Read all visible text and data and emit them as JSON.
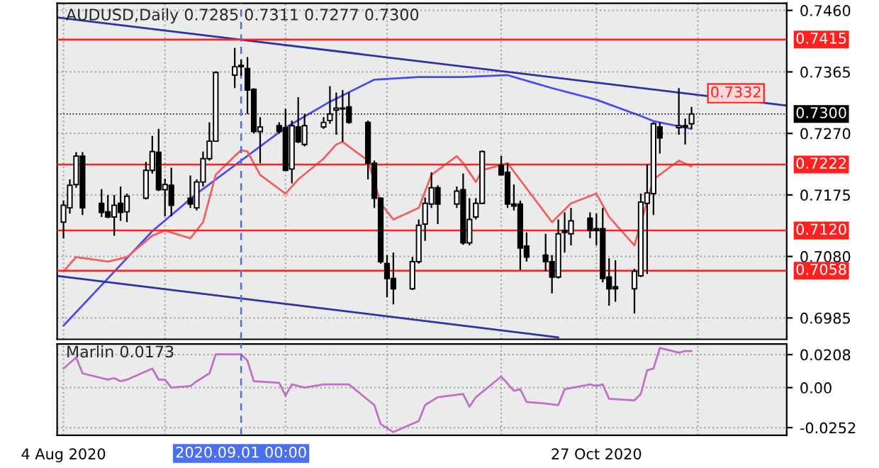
{
  "chart_data": [
    {
      "type": "candlestick",
      "title": "AUDUSD,Daily 0.7285 0.7311 0.7277 0.7300",
      "x": [
        "2020-08-04",
        "2020-08-05",
        "2020-08-06",
        "2020-08-07",
        "2020-08-10",
        "2020-08-11",
        "2020-08-12",
        "2020-08-13",
        "2020-08-14",
        "2020-08-17",
        "2020-08-18",
        "2020-08-19",
        "2020-08-20",
        "2020-08-21",
        "2020-08-24",
        "2020-08-25",
        "2020-08-26",
        "2020-08-27",
        "2020-08-28",
        "2020-08-31",
        "2020-09-01",
        "2020-09-02",
        "2020-09-03",
        "2020-09-04",
        "2020-09-07",
        "2020-09-08",
        "2020-09-09",
        "2020-09-10",
        "2020-09-11",
        "2020-09-14",
        "2020-09-15",
        "2020-09-16",
        "2020-09-17",
        "2020-09-18",
        "2020-09-21",
        "2020-09-22",
        "2020-09-23",
        "2020-09-24",
        "2020-09-25",
        "2020-09-28",
        "2020-09-29",
        "2020-09-30",
        "2020-10-01",
        "2020-10-02",
        "2020-10-05",
        "2020-10-06",
        "2020-10-07",
        "2020-10-08",
        "2020-10-09",
        "2020-10-12",
        "2020-10-13",
        "2020-10-14",
        "2020-10-15",
        "2020-10-16",
        "2020-10-19",
        "2020-10-20",
        "2020-10-21",
        "2020-10-22",
        "2020-10-23",
        "2020-10-26",
        "2020-10-27",
        "2020-10-28",
        "2020-10-29",
        "2020-10-30",
        "2020-11-02",
        "2020-11-03",
        "2020-11-04",
        "2020-11-05",
        "2020-11-06",
        "2020-11-09",
        "2020-11-10",
        "2020-11-11"
      ],
      "ohlc": [
        [
          0.7133,
          0.7166,
          0.7108,
          0.7159
        ],
        [
          0.7155,
          0.7199,
          0.7146,
          0.719
        ],
        [
          0.7191,
          0.7241,
          0.7186,
          0.7235
        ],
        [
          0.7235,
          0.7241,
          0.7144,
          0.7155
        ],
        [
          0.7162,
          0.7184,
          0.7141,
          0.7148
        ],
        [
          0.7149,
          0.7175,
          0.7139,
          0.7141
        ],
        [
          0.7141,
          0.7175,
          0.7112,
          0.7159
        ],
        [
          0.7162,
          0.7188,
          0.7135,
          0.7148
        ],
        [
          0.7149,
          0.7177,
          0.7133,
          0.7173
        ],
        [
          0.717,
          0.7226,
          0.7168,
          0.7213
        ],
        [
          0.7213,
          0.7266,
          0.7208,
          0.7242
        ],
        [
          0.7241,
          0.7277,
          0.7181,
          0.7183
        ],
        [
          0.7183,
          0.72,
          0.7142,
          0.7191
        ],
        [
          0.719,
          0.7217,
          0.7142,
          0.7159
        ],
        [
          0.717,
          0.7205,
          0.7155,
          0.7161
        ],
        [
          0.7155,
          0.7199,
          0.7151,
          0.7195
        ],
        [
          0.7195,
          0.7242,
          0.7188,
          0.7231
        ],
        [
          0.7231,
          0.7287,
          0.7228,
          0.7258
        ],
        [
          0.7258,
          0.7366,
          0.7257,
          0.7364
        ],
        [
          0.736,
          0.7402,
          0.734,
          0.7373
        ],
        [
          0.7375,
          0.7384,
          0.7359,
          0.7373
        ],
        [
          0.737,
          0.7388,
          0.73,
          0.7337
        ],
        [
          0.7338,
          0.734,
          0.727,
          0.7273
        ],
        [
          0.7273,
          0.7295,
          0.7224,
          0.728
        ],
        [
          0.7282,
          0.7287,
          0.727,
          0.7273
        ],
        [
          0.7279,
          0.7308,
          0.7212,
          0.7213
        ],
        [
          0.7215,
          0.729,
          0.7193,
          0.7282
        ],
        [
          0.728,
          0.7326,
          0.7255,
          0.7257
        ],
        [
          0.7253,
          0.73,
          0.725,
          0.7282
        ],
        [
          0.728,
          0.7295,
          0.7277,
          0.7287
        ],
        [
          0.729,
          0.7343,
          0.7285,
          0.73
        ],
        [
          0.7306,
          0.7333,
          0.7268,
          0.7309
        ],
        [
          0.7309,
          0.7337,
          0.7257,
          0.7308
        ],
        [
          0.7311,
          0.7333,
          0.7285,
          0.7287
        ],
        [
          0.7287,
          0.729,
          0.7199,
          0.7224
        ],
        [
          0.7224,
          0.7228,
          0.7155,
          0.717
        ],
        [
          0.717,
          0.7171,
          0.7069,
          0.7072
        ],
        [
          0.7069,
          0.7082,
          0.7017,
          0.7046
        ],
        [
          0.7046,
          0.7086,
          0.7006,
          0.703
        ],
        [
          0.703,
          0.7079,
          0.7028,
          0.7072
        ],
        [
          0.7072,
          0.7137,
          0.7069,
          0.7128
        ],
        [
          0.713,
          0.7171,
          0.7104,
          0.7162
        ],
        [
          0.7161,
          0.721,
          0.7155,
          0.7186
        ],
        [
          0.7186,
          0.719,
          0.713,
          0.7161
        ],
        [
          0.7161,
          0.7188,
          0.7155,
          0.7181
        ],
        [
          0.7183,
          0.7208,
          0.7098,
          0.7101
        ],
        [
          0.7101,
          0.717,
          0.7097,
          0.7137
        ],
        [
          0.7141,
          0.717,
          0.7137,
          0.7162
        ],
        [
          0.7162,
          0.7244,
          0.7161,
          0.7242
        ],
        [
          0.7221,
          0.7235,
          0.7205,
          0.7206
        ],
        [
          0.721,
          0.7224,
          0.7155,
          0.7161
        ],
        [
          0.7161,
          0.7191,
          0.7151,
          0.7158
        ],
        [
          0.7161,
          0.7166,
          0.7059,
          0.7093
        ],
        [
          0.7096,
          0.7117,
          0.7072,
          0.7079
        ],
        [
          0.7082,
          0.7115,
          0.7057,
          0.7072
        ],
        [
          0.7072,
          0.7082,
          0.7023,
          0.7048
        ],
        [
          0.7048,
          0.7137,
          0.7046,
          0.7115
        ],
        [
          0.712,
          0.7148,
          0.7086,
          0.7117
        ],
        [
          0.7115,
          0.7155,
          0.7097,
          0.7135
        ],
        [
          0.7139,
          0.7148,
          0.7108,
          0.712
        ],
        [
          0.7123,
          0.7146,
          0.7097,
          0.712
        ],
        [
          0.7123,
          0.7155,
          0.704,
          0.7046
        ],
        [
          0.7048,
          0.7077,
          0.7004,
          0.703
        ],
        [
          0.7033,
          0.7074,
          0.701,
          0.703
        ],
        [
          0.703,
          0.7061,
          0.6992,
          0.7057
        ],
        [
          0.705,
          0.7177,
          0.7048,
          0.7164
        ],
        [
          0.7162,
          0.7222,
          0.7053,
          0.7178
        ],
        [
          0.7177,
          0.7287,
          0.7144,
          0.7285
        ],
        [
          0.728,
          0.7287,
          0.7239,
          0.7263
        ],
        [
          0.7279,
          0.734,
          0.7268,
          0.7282
        ],
        [
          0.7282,
          0.7293,
          0.7253,
          0.728
        ],
        [
          0.7285,
          0.7311,
          0.7277,
          0.73
        ]
      ],
      "series": [
        {
          "type": "line",
          "color": "#4a4af0",
          "x": [
            "2020-08-04",
            "2020-08-11",
            "2020-08-18",
            "2020-08-25",
            "2020-09-01",
            "2020-09-08",
            "2020-09-15",
            "2020-09-22",
            "2020-09-29",
            "2020-10-06",
            "2020-10-13",
            "2020-10-20",
            "2020-10-27",
            "2020-11-03",
            "2020-11-05",
            "2020-11-11"
          ],
          "values": [
            0.6973,
            0.7046,
            0.7119,
            0.7177,
            0.7228,
            0.7279,
            0.7319,
            0.7353,
            0.7357,
            0.7357,
            0.736,
            0.734,
            0.7322,
            0.7297,
            0.7289,
            0.7277
          ]
        },
        {
          "type": "line",
          "color": "#f06060",
          "x": [
            "2020-08-04",
            "2020-08-06",
            "2020-08-11",
            "2020-08-14",
            "2020-08-18",
            "2020-08-20",
            "2020-08-24",
            "2020-08-26",
            "2020-08-28",
            "2020-08-31",
            "2020-09-01",
            "2020-09-02",
            "2020-09-04",
            "2020-09-08",
            "2020-09-10",
            "2020-09-14",
            "2020-09-16",
            "2020-09-17",
            "2020-09-21",
            "2020-09-23",
            "2020-09-25",
            "2020-09-29",
            "2020-10-01",
            "2020-10-05",
            "2020-10-06",
            "2020-10-08",
            "2020-10-09",
            "2020-10-13",
            "2020-10-20",
            "2020-10-23",
            "2020-10-27",
            "2020-10-29",
            "2020-11-02",
            "2020-11-05",
            "2020-11-09",
            "2020-11-11"
          ],
          "values": [
            0.7057,
            0.7079,
            0.7072,
            0.7079,
            0.7112,
            0.712,
            0.7108,
            0.7133,
            0.7206,
            0.7235,
            0.7244,
            0.7242,
            0.7206,
            0.7177,
            0.7199,
            0.7231,
            0.7253,
            0.7257,
            0.7228,
            0.7162,
            0.7137,
            0.7155,
            0.7206,
            0.7235,
            0.7224,
            0.7195,
            0.7213,
            0.7224,
            0.7133,
            0.7162,
            0.7177,
            0.7141,
            0.7097,
            0.7199,
            0.7228,
            0.7219
          ]
        },
        {
          "type": "line",
          "color": "#3030a8",
          "x": [
            "2020-08-03",
            "2020-11-26"
          ],
          "values": [
            0.7449,
            0.7313
          ]
        },
        {
          "type": "line",
          "color": "#3030a8",
          "x": [
            "2020-08-03",
            "2020-10-21"
          ],
          "values": [
            0.705,
            0.6955
          ]
        }
      ],
      "xlim": [
        "2020-08-03",
        "2020-11-26"
      ],
      "xticks": [
        {
          "value": "2020-08-04",
          "label": null
        },
        {
          "value": "2020-08-20",
          "label": null
        },
        {
          "value": "2020-09-08",
          "label": null
        },
        {
          "value": "2020-09-24",
          "label": null
        },
        {
          "value": "2020-10-12",
          "label": null
        },
        {
          "value": "2020-10-27",
          "label": null
        },
        {
          "value": "2020-11-12",
          "label": null
        }
      ],
      "ylim": [
        0.6952,
        0.7471
      ],
      "yticks": [
        {
          "value": 0.746,
          "label": "0.7460"
        },
        0.7365,
        {
          "value": 0.727,
          "label": "0.7270"
        },
        0.7175,
        {
          "value": 0.708,
          "label": "0.7080"
        },
        0.6985
      ],
      "tick_labels": "y",
      "grid": true,
      "ref_lines": [
        {
          "axis": "y",
          "value": 0.7415,
          "label": "0.7415",
          "color": "#ff2020"
        },
        {
          "axis": "y",
          "value": 0.7222,
          "label": "0.7222",
          "color": "#ff2020"
        },
        {
          "axis": "y",
          "value": 0.712,
          "label": "0.7120",
          "color": "#ff2020"
        },
        {
          "axis": "y",
          "value": 0.7058,
          "label": "0.7058",
          "color": "#ff2020"
        },
        {
          "axis": "x",
          "value": "2020-09-01",
          "label": null,
          "color": "#4a6ff0",
          "line_style": "dashed"
        },
        {
          "axis": "y",
          "value": 0.73,
          "label": "0.7300",
          "color": "#000000",
          "line_style": "dotted"
        }
      ],
      "annotations": [
        {
          "text": "0.7332",
          "x": "2020-11-18",
          "y": 0.7332
        }
      ]
    },
    {
      "type": "line",
      "title": "Marlin 0.0173",
      "series": [
        {
          "type": "line",
          "color": "#c070c8",
          "x": [
            "2020-08-04",
            "2020-08-06",
            "2020-08-07",
            "2020-08-11",
            "2020-08-12",
            "2020-08-13",
            "2020-08-14",
            "2020-08-18",
            "2020-08-19",
            "2020-08-20",
            "2020-08-21",
            "2020-08-24",
            "2020-08-25",
            "2020-08-27",
            "2020-08-28",
            "2020-09-01",
            "2020-09-02",
            "2020-09-03",
            "2020-09-07",
            "2020-09-08",
            "2020-09-09",
            "2020-09-11",
            "2020-09-14",
            "2020-09-16",
            "2020-09-18",
            "2020-09-22",
            "2020-09-23",
            "2020-09-25",
            "2020-09-29",
            "2020-09-30",
            "2020-10-02",
            "2020-10-06",
            "2020-10-07",
            "2020-10-08",
            "2020-10-12",
            "2020-10-14",
            "2020-10-15",
            "2020-10-16",
            "2020-10-19",
            "2020-10-21",
            "2020-10-22",
            "2020-10-26",
            "2020-10-27",
            "2020-10-28",
            "2020-10-29",
            "2020-11-02",
            "2020-11-03",
            "2020-11-04",
            "2020-11-05",
            "2020-11-06",
            "2020-11-09",
            "2020-11-10",
            "2020-11-11"
          ],
          "values": [
            0.012,
            0.019,
            0.009,
            0.005,
            0.006,
            0.004,
            0.005,
            0.012,
            0.005,
            0.005,
            0.0,
            0.001,
            0.004,
            0.009,
            0.021,
            0.021,
            0.017,
            0.004,
            0.003,
            -0.005,
            0.002,
            0.0,
            0.002,
            0.002,
            0.002,
            -0.011,
            -0.023,
            -0.028,
            -0.021,
            -0.011,
            -0.006,
            -0.004,
            -0.012,
            -0.006,
            0.007,
            -0.002,
            -0.001,
            -0.009,
            -0.01,
            -0.011,
            -0.001,
            0.002,
            0.001,
            0.002,
            -0.007,
            -0.008,
            -0.004,
            0.011,
            0.012,
            0.025,
            0.022,
            0.023,
            0.023
          ]
        }
      ],
      "xlim": [
        "2020-08-03",
        "2020-11-26"
      ],
      "xticks": [
        {
          "value": "2020-08-04",
          "label": "4 Aug 2020"
        },
        {
          "value": "2020-08-20",
          "label": null
        },
        {
          "value": "2020-09-08",
          "label": null
        },
        {
          "value": "2020-09-24",
          "label": null
        },
        {
          "value": "2020-10-12",
          "label": null
        },
        {
          "value": "2020-10-27",
          "label": "27 Oct 2020"
        },
        {
          "value": "2020-11-12",
          "label": null
        }
      ],
      "ylim": [
        -0.03,
        0.0275
      ],
      "yticks": [
        0.0208,
        {
          "value": 0,
          "label": "0.00"
        },
        -0.0252
      ],
      "grid": true,
      "ref_lines": [
        {
          "axis": "x",
          "value": "2020-09-01",
          "label": "2020.09.01 00:00",
          "color": "#4a6ff0",
          "line_style": "dashed"
        }
      ]
    }
  ]
}
